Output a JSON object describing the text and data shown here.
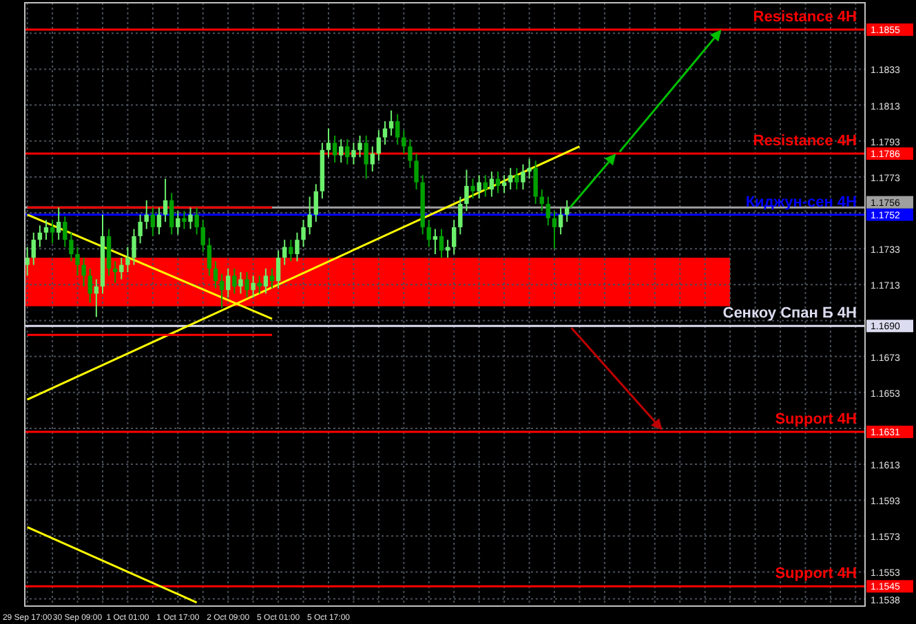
{
  "chart_data": {
    "type": "candlestick",
    "categories": [
      "29 Sep 17:00",
      null,
      null,
      null,
      null,
      null,
      null,
      null,
      "30 Sep 09:00",
      null,
      null,
      null,
      null,
      null,
      null,
      null,
      "1 Oct 01:00",
      null,
      null,
      null,
      null,
      null,
      null,
      null,
      "1 Oct 17:00",
      null,
      null,
      null,
      null,
      null,
      null,
      null,
      "2 Oct 09:00",
      null,
      null,
      null,
      null,
      null,
      null,
      null,
      "5 Oct 01:00",
      null,
      null,
      null,
      null,
      null,
      null,
      null,
      "5 Oct 17:00",
      null,
      null,
      null,
      null,
      null,
      null,
      null,
      null,
      null,
      null,
      null,
      null,
      null,
      null,
      null,
      null,
      null,
      null,
      null,
      null,
      null,
      null,
      null,
      null,
      null,
      null,
      null,
      null,
      null,
      null,
      null,
      null,
      null,
      null,
      null,
      null,
      null,
      null,
      null,
      null,
      null,
      null,
      null,
      null,
      null,
      null,
      null,
      null,
      null,
      null,
      null,
      null,
      null,
      null,
      null,
      null,
      null,
      null,
      null,
      null,
      null,
      null,
      null,
      null,
      null,
      null,
      null,
      null,
      null,
      null,
      null,
      null,
      null,
      null,
      null,
      null,
      null,
      null,
      null,
      null,
      null,
      null,
      null,
      null,
      null
    ],
    "ohlc": [
      [
        1.1724,
        1.1734,
        1.1718,
        1.1728
      ],
      [
        1.1728,
        1.1742,
        1.1724,
        1.1738
      ],
      [
        1.1738,
        1.1746,
        1.1734,
        1.1742
      ],
      [
        1.1742,
        1.1749,
        1.1738,
        1.1745
      ],
      [
        1.1745,
        1.1749,
        1.1736,
        1.1742
      ],
      [
        1.1742,
        1.1756,
        1.1738,
        1.1748
      ],
      [
        1.1748,
        1.1751,
        1.1734,
        1.1738
      ],
      [
        1.1738,
        1.1742,
        1.1726,
        1.173
      ],
      [
        1.173,
        1.1734,
        1.1718,
        1.1724
      ],
      [
        1.1724,
        1.1728,
        1.1712,
        1.1718
      ],
      [
        1.1718,
        1.1722,
        1.1703,
        1.1708
      ],
      [
        1.1708,
        1.1716,
        1.1695,
        1.1712
      ],
      [
        1.1712,
        1.1752,
        1.1708,
        1.174
      ],
      [
        1.174,
        1.1744,
        1.1718,
        1.1722
      ],
      [
        1.1722,
        1.1726,
        1.1714,
        1.172
      ],
      [
        1.172,
        1.1728,
        1.1716,
        1.1724
      ],
      [
        1.1724,
        1.1734,
        1.172,
        1.1728
      ],
      [
        1.1728,
        1.1744,
        1.1724,
        1.174
      ],
      [
        1.174,
        1.1752,
        1.1736,
        1.1748
      ],
      [
        1.1748,
        1.176,
        1.1744,
        1.1752
      ],
      [
        1.1752,
        1.1756,
        1.174,
        1.1745
      ],
      [
        1.1745,
        1.1756,
        1.1741,
        1.1752
      ],
      [
        1.1752,
        1.1772,
        1.1748,
        1.176
      ],
      [
        1.176,
        1.1764,
        1.1741,
        1.1745
      ],
      [
        1.1745,
        1.1754,
        1.1741,
        1.175
      ],
      [
        1.175,
        1.1754,
        1.1744,
        1.1748
      ],
      [
        1.1748,
        1.1756,
        1.1744,
        1.1752
      ],
      [
        1.1752,
        1.1756,
        1.1741,
        1.1745
      ],
      [
        1.1745,
        1.1749,
        1.1731,
        1.1735
      ],
      [
        1.1735,
        1.1739,
        1.1718,
        1.1722
      ],
      [
        1.1722,
        1.1726,
        1.1711,
        1.1715
      ],
      [
        1.1715,
        1.1719,
        1.17,
        1.171
      ],
      [
        1.171,
        1.1722,
        1.1706,
        1.1718
      ],
      [
        1.1718,
        1.1722,
        1.1708,
        1.1712
      ],
      [
        1.1712,
        1.172,
        1.1708,
        1.1716
      ],
      [
        1.1716,
        1.172,
        1.1706,
        1.171
      ],
      [
        1.171,
        1.1718,
        1.1706,
        1.1714
      ],
      [
        1.1714,
        1.1718,
        1.1708,
        1.1712
      ],
      [
        1.1712,
        1.1722,
        1.1708,
        1.1718
      ],
      [
        1.1718,
        1.1722,
        1.1711,
        1.1715
      ],
      [
        1.1715,
        1.1732,
        1.1711,
        1.1728
      ],
      [
        1.1728,
        1.1738,
        1.1724,
        1.1734
      ],
      [
        1.1734,
        1.1738,
        1.1726,
        1.173
      ],
      [
        1.173,
        1.1742,
        1.1726,
        1.1738
      ],
      [
        1.1738,
        1.1749,
        1.1734,
        1.1745
      ],
      [
        1.1745,
        1.1762,
        1.1741,
        1.1752
      ],
      [
        1.1752,
        1.1769,
        1.1748,
        1.1765
      ],
      [
        1.1765,
        1.1792,
        1.1761,
        1.1788
      ],
      [
        1.1788,
        1.18,
        1.1784,
        1.1792
      ],
      [
        1.1792,
        1.1796,
        1.1781,
        1.1785
      ],
      [
        1.1785,
        1.1794,
        1.1781,
        1.179
      ],
      [
        1.179,
        1.1794,
        1.178,
        1.1784
      ],
      [
        1.1784,
        1.1792,
        1.178,
        1.1788
      ],
      [
        1.1788,
        1.1796,
        1.1784,
        1.1792
      ],
      [
        1.1792,
        1.1796,
        1.1772,
        1.178
      ],
      [
        1.178,
        1.179,
        1.1776,
        1.1786
      ],
      [
        1.1786,
        1.1799,
        1.1782,
        1.1795
      ],
      [
        1.1795,
        1.1804,
        1.1791,
        1.18
      ],
      [
        1.18,
        1.181,
        1.1796,
        1.1804
      ],
      [
        1.1804,
        1.1808,
        1.1791,
        1.1795
      ],
      [
        1.1795,
        1.1799,
        1.1786,
        1.179
      ],
      [
        1.179,
        1.1794,
        1.1778,
        1.1782
      ],
      [
        1.1782,
        1.1786,
        1.1766,
        1.177
      ],
      [
        1.177,
        1.1774,
        1.1741,
        1.1745
      ],
      [
        1.1745,
        1.1749,
        1.1734,
        1.1738
      ],
      [
        1.1738,
        1.1744,
        1.173,
        1.174
      ],
      [
        1.174,
        1.1744,
        1.1728,
        1.1732
      ],
      [
        1.1732,
        1.1738,
        1.1728,
        1.1734
      ],
      [
        1.1734,
        1.1749,
        1.173,
        1.1745
      ],
      [
        1.1745,
        1.1762,
        1.1741,
        1.1758
      ],
      [
        1.1758,
        1.1777,
        1.1754,
        1.1768
      ],
      [
        1.1768,
        1.1772,
        1.1761,
        1.1765
      ],
      [
        1.1765,
        1.1774,
        1.1761,
        1.177
      ],
      [
        1.177,
        1.1774,
        1.1762,
        1.1766
      ],
      [
        1.1766,
        1.1776,
        1.1762,
        1.1772
      ],
      [
        1.1772,
        1.1776,
        1.1764,
        1.1768
      ],
      [
        1.1768,
        1.1774,
        1.1764,
        1.177
      ],
      [
        1.177,
        1.1778,
        1.1766,
        1.1774
      ],
      [
        1.1774,
        1.1778,
        1.1766,
        1.177
      ],
      [
        1.177,
        1.178,
        1.1766,
        1.1776
      ],
      [
        1.1776,
        1.1783,
        1.1772,
        1.1778
      ],
      [
        1.1778,
        1.1782,
        1.1758,
        1.1762
      ],
      [
        1.1762,
        1.1766,
        1.1754,
        1.1758
      ],
      [
        1.1758,
        1.1762,
        1.1746,
        1.175
      ],
      [
        1.175,
        1.1754,
        1.1733,
        1.1745
      ],
      [
        1.1745,
        1.1756,
        1.1741,
        1.1752
      ],
      [
        1.1752,
        1.176,
        1.1748,
        1.1756
      ],
      null,
      null,
      null,
      null,
      null,
      null,
      null,
      null,
      null,
      null,
      null,
      null,
      null,
      null,
      null,
      null,
      null,
      null,
      null,
      null,
      null,
      null,
      null,
      null,
      null,
      null,
      null,
      null,
      null,
      null,
      null,
      null,
      null,
      null,
      null,
      null,
      null,
      null,
      null,
      null,
      null,
      null,
      null,
      null,
      null,
      null,
      null
    ],
    "series": [
      {
        "type": "line",
        "color": "#ffff00",
        "values": [
          1.1752,
          null,
          null,
          null,
          null,
          null,
          null,
          null,
          null,
          null,
          null,
          null,
          null,
          null,
          null,
          null,
          null,
          null,
          null,
          null,
          null,
          null,
          null,
          null,
          null,
          null,
          null,
          null,
          null,
          null,
          null,
          null,
          null,
          null,
          null,
          null,
          null,
          null,
          null,
          1.1694,
          null,
          null,
          null,
          null,
          null,
          null,
          null,
          null,
          null,
          null,
          null,
          null,
          null,
          null,
          null,
          null,
          null,
          null,
          null,
          null,
          null,
          null,
          null,
          null,
          null,
          null,
          null,
          null,
          null,
          null,
          null,
          null,
          null,
          null,
          null,
          null,
          null,
          null,
          null,
          null,
          null,
          null,
          null,
          null,
          null,
          null,
          null,
          null,
          null,
          null,
          null,
          null,
          null,
          null,
          null,
          null,
          null,
          null,
          null,
          null,
          null,
          null,
          null,
          null,
          null,
          null,
          null,
          null,
          null,
          null,
          null,
          null,
          null,
          null,
          null,
          null,
          null,
          null,
          null,
          null,
          null,
          null,
          null,
          null,
          null,
          null,
          null,
          null,
          null,
          null,
          null,
          null,
          null,
          null
        ]
      },
      {
        "type": "line",
        "color": "#ffff00",
        "values": [
          1.1649,
          null,
          null,
          null,
          null,
          null,
          null,
          null,
          null,
          null,
          null,
          null,
          null,
          null,
          null,
          null,
          null,
          null,
          null,
          null,
          null,
          null,
          null,
          null,
          null,
          null,
          null,
          null,
          null,
          null,
          null,
          null,
          null,
          null,
          null,
          null,
          null,
          null,
          null,
          null,
          null,
          null,
          null,
          null,
          null,
          null,
          null,
          null,
          null,
          null,
          null,
          null,
          null,
          null,
          null,
          null,
          null,
          null,
          null,
          null,
          null,
          null,
          null,
          null,
          null,
          null,
          null,
          null,
          null,
          null,
          null,
          null,
          null,
          null,
          null,
          null,
          null,
          null,
          null,
          null,
          null,
          null,
          null,
          null,
          null,
          null,
          null,
          null,
          1.179,
          null,
          null,
          null,
          null,
          null,
          null,
          null,
          null,
          null,
          null,
          null,
          null,
          null,
          null,
          null,
          null,
          null,
          null,
          null,
          null,
          null,
          null,
          null,
          null,
          null,
          null,
          null,
          null,
          null,
          null,
          null,
          null,
          null,
          null,
          null,
          null,
          null,
          null,
          null,
          null,
          null,
          null,
          null,
          null,
          null
        ]
      },
      {
        "type": "line",
        "color": "#ffff00",
        "values": [
          1.1578,
          null,
          null,
          null,
          null,
          null,
          null,
          null,
          null,
          null,
          null,
          null,
          null,
          null,
          null,
          null,
          null,
          null,
          null,
          null,
          null,
          null,
          null,
          null,
          null,
          null,
          null,
          1.1536,
          null,
          null,
          null,
          null,
          null,
          null,
          null,
          null,
          null,
          null,
          null,
          null,
          null,
          null,
          null,
          null,
          null,
          null,
          null,
          null,
          null,
          null,
          null,
          null,
          null,
          null,
          null,
          null,
          null,
          null,
          null,
          null,
          null,
          null,
          null,
          null,
          null,
          null,
          null,
          null,
          null,
          null,
          null,
          null,
          null,
          null,
          null,
          null,
          null,
          null,
          null,
          null,
          null,
          null,
          null,
          null,
          null,
          null,
          null,
          null,
          null,
          null,
          null,
          null,
          null,
          null,
          null,
          null,
          null,
          null,
          null,
          null,
          null,
          null,
          null,
          null,
          null,
          null,
          null,
          null,
          null,
          null,
          null,
          null,
          null,
          null,
          null,
          null,
          null,
          null,
          null,
          null,
          null,
          null,
          null,
          null,
          null,
          null,
          null,
          null,
          null,
          null,
          null,
          null,
          null,
          null
        ]
      },
      {
        "type": "line",
        "color": "#ff0000",
        "values": [
          1.1756,
          null,
          null,
          null,
          null,
          null,
          null,
          null,
          null,
          null,
          null,
          null,
          null,
          null,
          null,
          null,
          null,
          null,
          null,
          null,
          null,
          null,
          null,
          null,
          null,
          null,
          null,
          null,
          null,
          null,
          null,
          null,
          null,
          null,
          null,
          null,
          null,
          null,
          null,
          1.1756,
          null,
          null,
          null,
          null,
          null,
          null,
          null,
          null,
          null,
          null,
          null,
          null,
          null,
          null,
          null,
          null,
          null,
          null,
          null,
          null,
          null,
          null,
          null,
          null,
          null,
          null,
          null,
          null,
          null,
          null,
          null,
          null,
          null,
          null,
          null,
          null,
          null,
          null,
          null,
          null,
          null,
          null,
          null,
          null,
          null,
          null,
          null,
          null,
          null,
          null,
          null,
          null,
          null,
          null,
          null,
          null,
          null,
          null,
          null,
          null,
          null,
          null,
          null,
          null,
          null,
          null,
          null,
          null,
          null,
          null,
          null,
          null,
          null,
          null,
          null,
          null,
          null,
          null,
          null,
          null,
          null,
          null,
          null,
          null,
          null,
          null,
          null,
          null,
          null,
          null,
          null,
          null,
          null,
          null
        ]
      },
      {
        "type": "line",
        "color": "#ff0000",
        "values": [
          1.1685,
          null,
          null,
          null,
          null,
          null,
          null,
          null,
          null,
          null,
          null,
          null,
          null,
          null,
          null,
          null,
          null,
          null,
          null,
          null,
          null,
          null,
          null,
          null,
          null,
          null,
          null,
          null,
          null,
          null,
          null,
          null,
          null,
          null,
          null,
          null,
          null,
          null,
          null,
          1.1685,
          null,
          null,
          null,
          null,
          null,
          null,
          null,
          null,
          null,
          null,
          null,
          null,
          null,
          null,
          null,
          null,
          null,
          null,
          null,
          null,
          null,
          null,
          null,
          null,
          null,
          null,
          null,
          null,
          null,
          null,
          null,
          null,
          null,
          null,
          null,
          null,
          null,
          null,
          null,
          null,
          null,
          null,
          null,
          null,
          null,
          null,
          null,
          null,
          null,
          null,
          null,
          null,
          null,
          null,
          null,
          null,
          null,
          null,
          null,
          null,
          null,
          null,
          null,
          null,
          null,
          null,
          null,
          null,
          null,
          null,
          null,
          null,
          null,
          null,
          null,
          null,
          null,
          null,
          null,
          null,
          null,
          null,
          null,
          null,
          null,
          null,
          null,
          null,
          null,
          null,
          null,
          null,
          null,
          null
        ]
      }
    ],
    "ref_lines": [
      {
        "axis": "y",
        "value": 1.1855,
        "label": "Resistance 4H",
        "color": "#ff0000"
      },
      {
        "axis": "y",
        "value": 1.1786,
        "label": "Resistance 4H",
        "color": "#ff0000"
      },
      {
        "axis": "y",
        "value": 1.1756,
        "label": null,
        "color": "#a0a0a0"
      },
      {
        "axis": "y",
        "value": 1.1752,
        "label": "Киджун-сен 4H",
        "color": "#0000ff"
      },
      {
        "axis": "y",
        "value": 1.169,
        "label": "Сенкоу Спан Б 4H",
        "color": "#dcdcf0"
      },
      {
        "axis": "y",
        "value": 1.1631,
        "label": "Support 4H",
        "color": "#ff0000"
      },
      {
        "axis": "y",
        "value": 1.1545,
        "label": "Support 4H",
        "color": "#ff0000"
      }
    ],
    "annotations": [
      "1.1855",
      "1.1786",
      "1.1756",
      "1.1752",
      "1.1690",
      "1.1631",
      "1.1545"
    ],
    "bands": [
      {
        "axis": "y",
        "from": 1.1701,
        "to": 1.1728,
        "color": "#ff0000"
      }
    ],
    "ylim": [
      1.1534,
      1.187
    ],
    "yticks": [
      1.1538,
      1.1553,
      1.1573,
      1.1593,
      1.1613,
      {
        "value": 1.1633,
        "label": null
      },
      1.1653,
      1.1673,
      {
        "value": 1.1693,
        "label": null
      },
      1.1713,
      1.1733,
      {
        "value": 1.1753,
        "label": null
      },
      1.1773,
      1.1793,
      1.1813,
      1.1833,
      {
        "value": 1.1853,
        "label": null
      }
    ],
    "grid": true
  }
}
